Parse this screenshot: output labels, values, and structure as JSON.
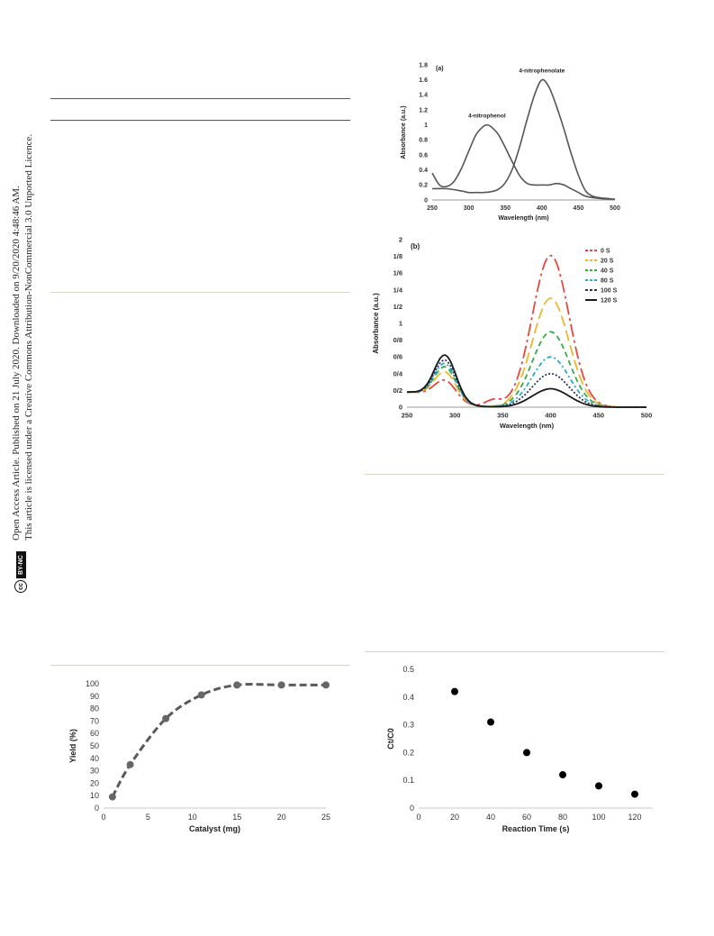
{
  "sidebar": {
    "line1": "Open Access Article. Published on 21 July 2020. Downloaded on 9/20/2020 4:48:46 AM.",
    "line2": "This article is licensed under a Creative Commons Attribution-NonCommercial 3.0 Unported Licence.",
    "badge_cc": "cc",
    "badge_license": "BY-NC"
  },
  "colors": {
    "rule_dark": "#555555",
    "rule_light": "#d6d6c8",
    "gray_curve": "#555555",
    "yield_line": "#5a5a5a",
    "kinetics_dot": "#000000"
  },
  "chart_data": [
    {
      "id": "spectra-a",
      "type": "line",
      "panel_label": "(a)",
      "xlabel": "Wavelength (nm)",
      "ylabel": "Absorbance (a.u.)",
      "xlim": [
        250,
        500
      ],
      "ylim": [
        0,
        1.8
      ],
      "xticks": [
        "250",
        "300",
        "350",
        "400",
        "450",
        "500"
      ],
      "yticks": [
        "0",
        "0.2",
        "0.4",
        "0.6",
        "0.8",
        "1",
        "1.2",
        "1.4",
        "1.6",
        "1.8"
      ],
      "series": [
        {
          "annotation": "4-nitrophenol",
          "x": [
            250,
            260,
            270,
            280,
            290,
            300,
            310,
            320,
            325,
            330,
            340,
            350,
            360,
            370,
            380,
            390,
            400,
            410,
            420,
            430,
            440,
            450,
            460,
            480,
            500
          ],
          "y": [
            0.36,
            0.2,
            0.18,
            0.25,
            0.42,
            0.65,
            0.87,
            0.98,
            1.0,
            0.98,
            0.88,
            0.7,
            0.5,
            0.32,
            0.22,
            0.2,
            0.2,
            0.2,
            0.22,
            0.2,
            0.15,
            0.1,
            0.05,
            0.02,
            0.01
          ]
        },
        {
          "annotation": "4-nitrophenolate",
          "x": [
            250,
            270,
            290,
            300,
            310,
            320,
            330,
            340,
            350,
            360,
            370,
            380,
            390,
            400,
            410,
            420,
            430,
            440,
            450,
            460,
            470,
            480,
            490,
            500
          ],
          "y": [
            0.15,
            0.15,
            0.12,
            0.1,
            0.1,
            0.1,
            0.11,
            0.14,
            0.23,
            0.42,
            0.72,
            1.08,
            1.4,
            1.6,
            1.5,
            1.25,
            0.95,
            0.62,
            0.33,
            0.12,
            0.05,
            0.03,
            0.02,
            0.01
          ]
        }
      ]
    },
    {
      "id": "spectra-b",
      "type": "line",
      "panel_label": "(b)",
      "xlabel": "Wavelength (nm)",
      "ylabel": "Absorbance (a.u.)",
      "xlim": [
        250,
        500
      ],
      "ylim": [
        0,
        2
      ],
      "xticks": [
        "250",
        "300",
        "350",
        "400",
        "450",
        "500"
      ],
      "yticks": [
        "0",
        "0/2",
        "0/4",
        "0/6",
        "0/8",
        "1",
        "1/2",
        "1/4",
        "1/6",
        "1/8",
        "2"
      ],
      "legend_position": "top-right",
      "series": [
        {
          "name": "0 S",
          "color": "#e8473d",
          "dash": "14,4,3,4",
          "peak_uv": 0.24,
          "peak_vis": 1.81
        },
        {
          "name": "20 S",
          "color": "#f0b62c",
          "dash": "12,5",
          "peak_uv": 0.34,
          "peak_vis": 1.3
        },
        {
          "name": "40 S",
          "color": "#3aa84e",
          "dash": "6,4",
          "peak_uv": 0.4,
          "peak_vis": 0.9
        },
        {
          "name": "80 S",
          "color": "#2ba9d6",
          "dash": "5,3,2,3",
          "peak_uv": 0.44,
          "peak_vis": 0.6
        },
        {
          "name": "100 S",
          "color": "#33335c",
          "dash": "2,2",
          "peak_uv": 0.48,
          "peak_vis": 0.4
        },
        {
          "name": "120 S",
          "color": "#1a1a1a",
          "dash": "",
          "peak_uv": 0.54,
          "peak_vis": 0.22
        }
      ]
    },
    {
      "id": "yield",
      "type": "line",
      "xlabel": "Catalyst (mg)",
      "ylabel": "Yield (%)",
      "xlim": [
        0,
        25
      ],
      "ylim": [
        0,
        100
      ],
      "xticks": [
        "0",
        "5",
        "10",
        "15",
        "20",
        "25"
      ],
      "yticks": [
        "0",
        "10",
        "20",
        "30",
        "40",
        "50",
        "60",
        "70",
        "80",
        "90",
        "100"
      ],
      "x": [
        1,
        3,
        7,
        11,
        15,
        20,
        25
      ],
      "y": [
        9,
        35,
        72,
        91,
        99,
        99,
        99
      ]
    },
    {
      "id": "kinetics",
      "type": "scatter",
      "xlabel": "Reaction Time (s)",
      "ylabel": "Ct/C0",
      "xlim": [
        0,
        130
      ],
      "ylim": [
        0,
        0.5
      ],
      "xticks": [
        "0",
        "20",
        "40",
        "60",
        "80",
        "100",
        "120"
      ],
      "yticks": [
        "0",
        "0.1",
        "0.2",
        "0.3",
        "0.4",
        "0.5"
      ],
      "x": [
        20,
        40,
        60,
        80,
        100,
        120
      ],
      "y": [
        0.42,
        0.31,
        0.2,
        0.12,
        0.08,
        0.05
      ]
    }
  ]
}
